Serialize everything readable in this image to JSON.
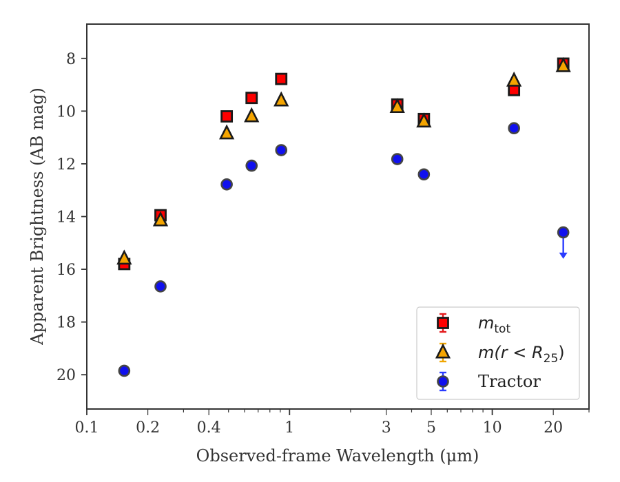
{
  "chart_data": {
    "type": "scatter",
    "title": "",
    "xlabel": "Observed-frame Wavelength (μm)",
    "ylabel": "Apparent Brightness (AB mag)",
    "xscale": "log",
    "xlim": [
      0.1,
      30
    ],
    "ylim": [
      21.3,
      6.7
    ],
    "y_inverted": true,
    "x_ticks": [
      {
        "value": 0.1,
        "label": "0.1"
      },
      {
        "value": 0.2,
        "label": "0.2"
      },
      {
        "value": 0.4,
        "label": "0.4"
      },
      {
        "value": 1,
        "label": "1"
      },
      {
        "value": 3,
        "label": "3"
      },
      {
        "value": 5,
        "label": "5"
      },
      {
        "value": 10,
        "label": "10"
      },
      {
        "value": 20,
        "label": "20"
      }
    ],
    "y_ticks": [
      {
        "value": 8,
        "label": "8"
      },
      {
        "value": 10,
        "label": "10"
      },
      {
        "value": 12,
        "label": "12"
      },
      {
        "value": 14,
        "label": "14"
      },
      {
        "value": 16,
        "label": "16"
      },
      {
        "value": 18,
        "label": "18"
      },
      {
        "value": 20,
        "label": "20"
      }
    ],
    "grid": false,
    "legend_position": "lower-right",
    "series": [
      {
        "name": "m_tot",
        "marker": "square",
        "fill": "#ff0000",
        "edge": "#1a1a1a",
        "errorbar_color": "#e31a1c",
        "points": [
          {
            "x": 0.153,
            "y": 15.8
          },
          {
            "x": 0.231,
            "y": 13.95
          },
          {
            "x": 0.49,
            "y": 10.2
          },
          {
            "x": 0.65,
            "y": 9.5
          },
          {
            "x": 0.91,
            "y": 8.78
          },
          {
            "x": 3.4,
            "y": 9.75
          },
          {
            "x": 4.6,
            "y": 10.3
          },
          {
            "x": 12.8,
            "y": 9.2
          },
          {
            "x": 22.4,
            "y": 8.2
          }
        ]
      },
      {
        "name": "m(r < R_25)",
        "marker": "triangle",
        "fill": "#f5a500",
        "edge": "#1a1a1a",
        "errorbar_color": "#f0a500",
        "points": [
          {
            "x": 0.153,
            "y": 15.6
          },
          {
            "x": 0.231,
            "y": 14.15
          },
          {
            "x": 0.49,
            "y": 10.85
          },
          {
            "x": 0.65,
            "y": 10.2
          },
          {
            "x": 0.91,
            "y": 9.6
          },
          {
            "x": 3.4,
            "y": 9.85
          },
          {
            "x": 4.6,
            "y": 10.4
          },
          {
            "x": 12.8,
            "y": 8.85
          },
          {
            "x": 22.4,
            "y": 8.3
          }
        ]
      },
      {
        "name": "Tractor",
        "marker": "circle",
        "fill": "#1010ee",
        "edge": "#444444",
        "errorbar_color": "#2a3bff",
        "points": [
          {
            "x": 0.153,
            "y": 19.85
          },
          {
            "x": 0.231,
            "y": 16.65
          },
          {
            "x": 0.49,
            "y": 12.78
          },
          {
            "x": 0.65,
            "y": 12.07
          },
          {
            "x": 0.91,
            "y": 11.48
          },
          {
            "x": 3.4,
            "y": 11.82
          },
          {
            "x": 4.6,
            "y": 12.4
          },
          {
            "x": 12.8,
            "y": 10.65
          },
          {
            "x": 22.4,
            "y": 14.6,
            "upper_limit": true,
            "arrow_to": 15.55
          }
        ]
      }
    ],
    "legend": {
      "entries": [
        {
          "series": 0,
          "main": "m",
          "sub": "tot",
          "suffix": ""
        },
        {
          "series": 1,
          "main": "m(r < R",
          "sub": "25",
          "suffix": ")"
        },
        {
          "series": 2,
          "main": "Tractor",
          "sub": "",
          "suffix": ""
        }
      ]
    }
  }
}
